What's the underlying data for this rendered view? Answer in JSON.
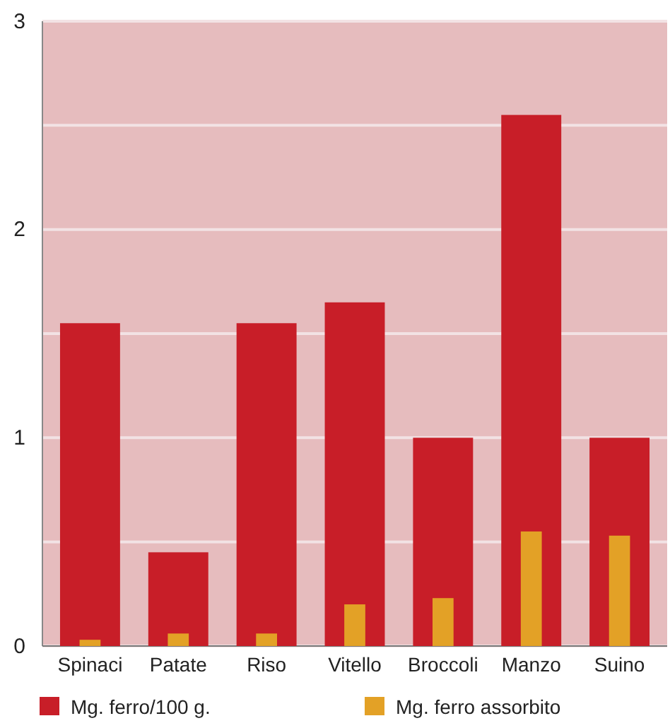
{
  "chart_data": {
    "type": "bar",
    "categories": [
      "Spinaci",
      "Patate",
      "Riso",
      "Vitello",
      "Broccoli",
      "Manzo",
      "Suino"
    ],
    "series": [
      {
        "name": "Mg. ferro/100 g.",
        "color": "#c81e28",
        "values": [
          1.55,
          0.45,
          1.55,
          1.65,
          1.0,
          2.55,
          1.0
        ]
      },
      {
        "name": "Mg. ferro assorbito",
        "color": "#e3a126",
        "values": [
          0.03,
          0.06,
          0.06,
          0.2,
          0.23,
          0.55,
          0.53
        ]
      }
    ],
    "ylim": [
      0,
      3
    ],
    "yticks": [
      0,
      {
        "value": 0.5,
        "label": null
      },
      1,
      {
        "value": 1.5,
        "label": null
      },
      2,
      {
        "value": 2.5,
        "label": null
      },
      3
    ],
    "grid": "y",
    "legend": "bottom"
  }
}
